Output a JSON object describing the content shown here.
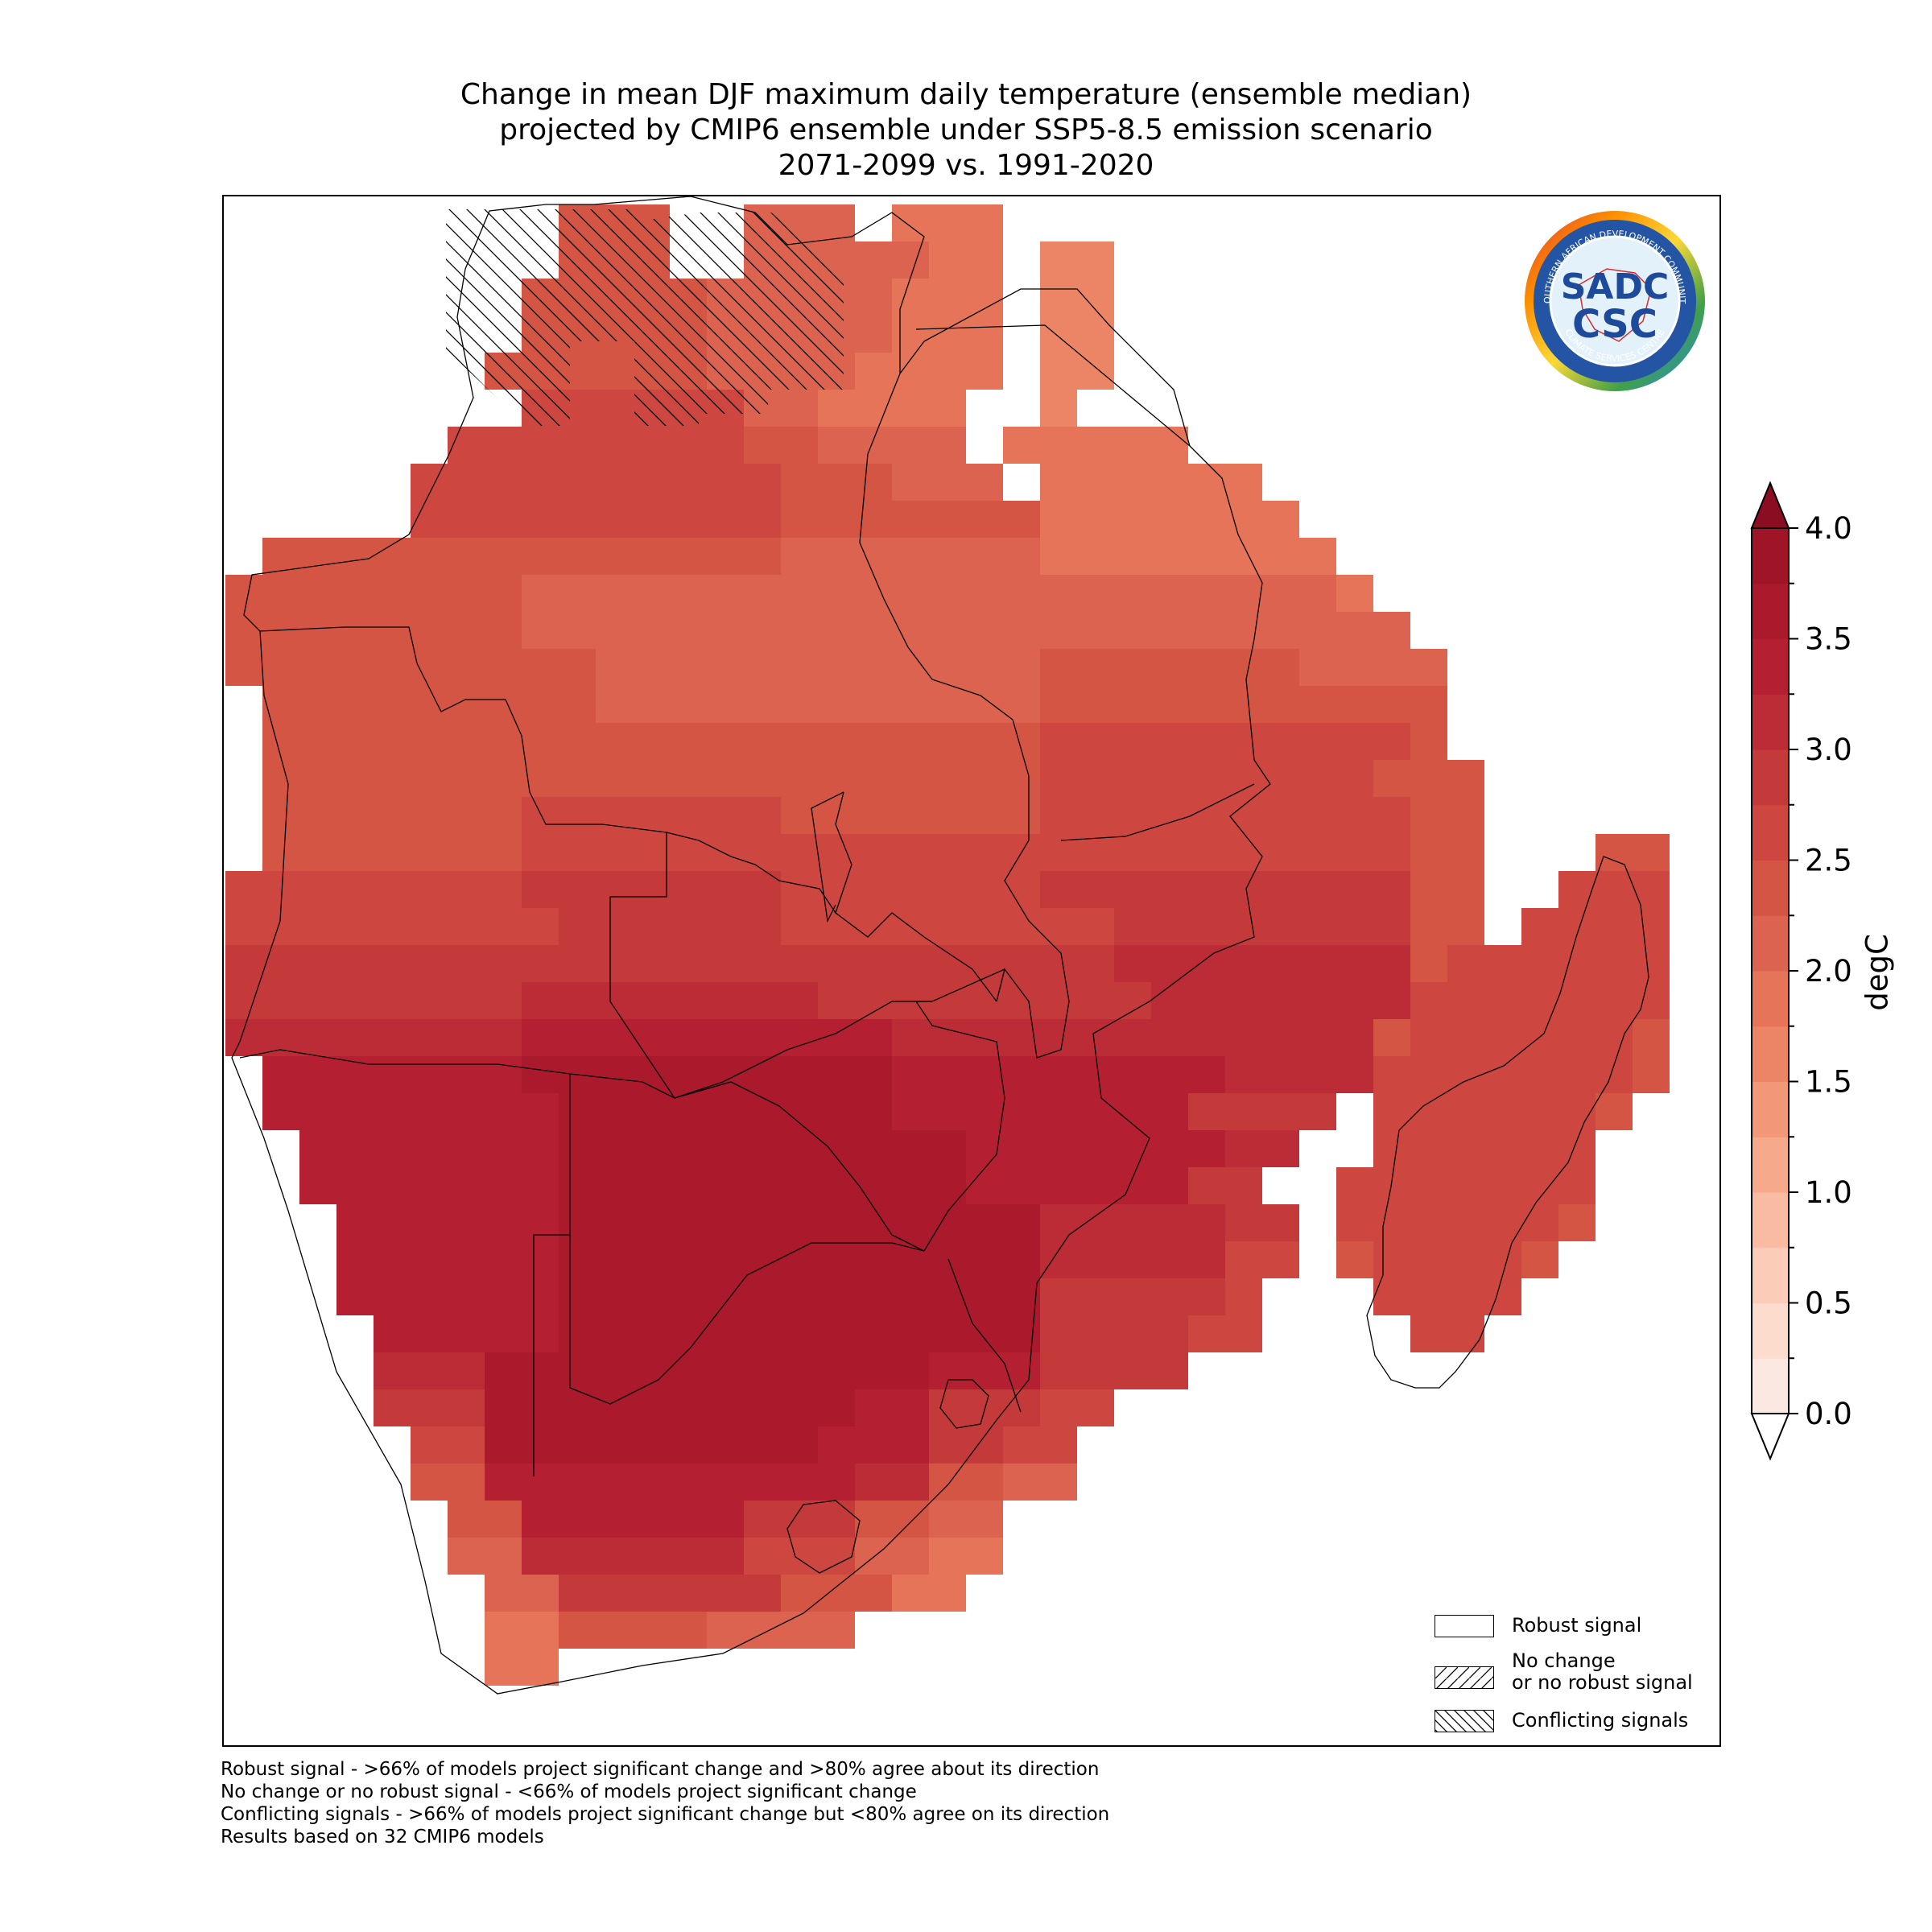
{
  "title": {
    "lines": [
      "Change in mean DJF maximum daily temperature (ensemble median)",
      "projected by CMIP6 ensemble under SSP5-8.5 emission scenario",
      "2071-2099 vs. 1991-2020"
    ]
  },
  "logo": {
    "ring_text_top": "SOUTHERN AFRICAN DEVELOPMENT COMMUNITY",
    "ring_text_bottom": "CLIMATE SERVICES CENTRE",
    "sadc": "SADC",
    "csc": "CSC",
    "icon": "sadc-csc-logo-icon"
  },
  "legend": {
    "items": [
      {
        "label": "Robust signal",
        "pattern": "none"
      },
      {
        "label_line1": "No change",
        "label_line2": "or no robust signal",
        "pattern": "forward-hatch"
      },
      {
        "label": "Conflicting signals",
        "pattern": "back-hatch"
      }
    ]
  },
  "footnotes": [
    "Robust signal - >66% of models project significant change and >80% agree about its direction",
    "No change or no robust signal - <66% of models project significant change",
    "Conflicting signals - >66% of models project significant change but <80% agree on its direction",
    "Results based on 32 CMIP6 models"
  ],
  "colorbar": {
    "label": "degC",
    "min": 0.0,
    "max": 4.0,
    "step": 0.25,
    "ticks": [
      "0.0",
      "0.5",
      "1.0",
      "1.5",
      "2.0",
      "2.5",
      "3.0",
      "3.5",
      "4.0"
    ],
    "extend": "both",
    "colors": [
      "#fbe8e0",
      "#fbdccd",
      "#fbcdb9",
      "#f9bba2",
      "#f7a98b",
      "#f29777",
      "#ec8466",
      "#e57459",
      "#dc634f",
      "#d55545",
      "#cd4740",
      "#c4393a",
      "#bc2c36",
      "#b41f31",
      "#ab1a2c",
      "#a01428"
    ],
    "under_color": "#ffffff",
    "over_color": "#8a0d21"
  },
  "colors": {
    "hatch": "#000000",
    "border": "#000000"
  }
}
